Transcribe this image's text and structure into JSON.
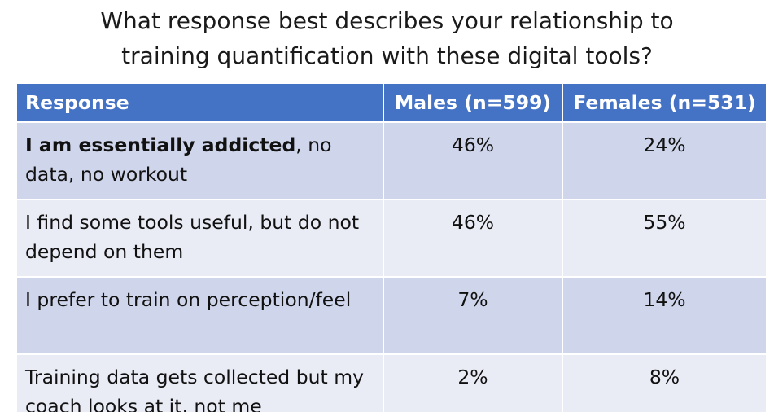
{
  "title": {
    "line1": "What response best describes your relationship to",
    "line2": "training quantification with these digital tools?"
  },
  "table": {
    "headers": [
      "Response",
      "Males (n=599)",
      "Females (n=531)"
    ],
    "rows": [
      {
        "response_bold": "I am essentially addicted",
        "response_rest": ", no data, no workout",
        "males": "46%",
        "females": "24%"
      },
      {
        "response_bold": "",
        "response_rest": "I find some tools useful, but do not depend on them",
        "males": "46%",
        "females": "55%"
      },
      {
        "response_bold": "",
        "response_rest": "I prefer to train on perception/feel",
        "males": "7%",
        "females": "14%"
      },
      {
        "response_bold": "",
        "response_rest": "Training data gets collected but my coach looks at it, not me",
        "males": "2%",
        "females": "8%"
      }
    ]
  },
  "colors": {
    "header_bg": "#4472c4",
    "row_odd_bg": "#cfd5ea",
    "row_even_bg": "#e9ebf5"
  }
}
